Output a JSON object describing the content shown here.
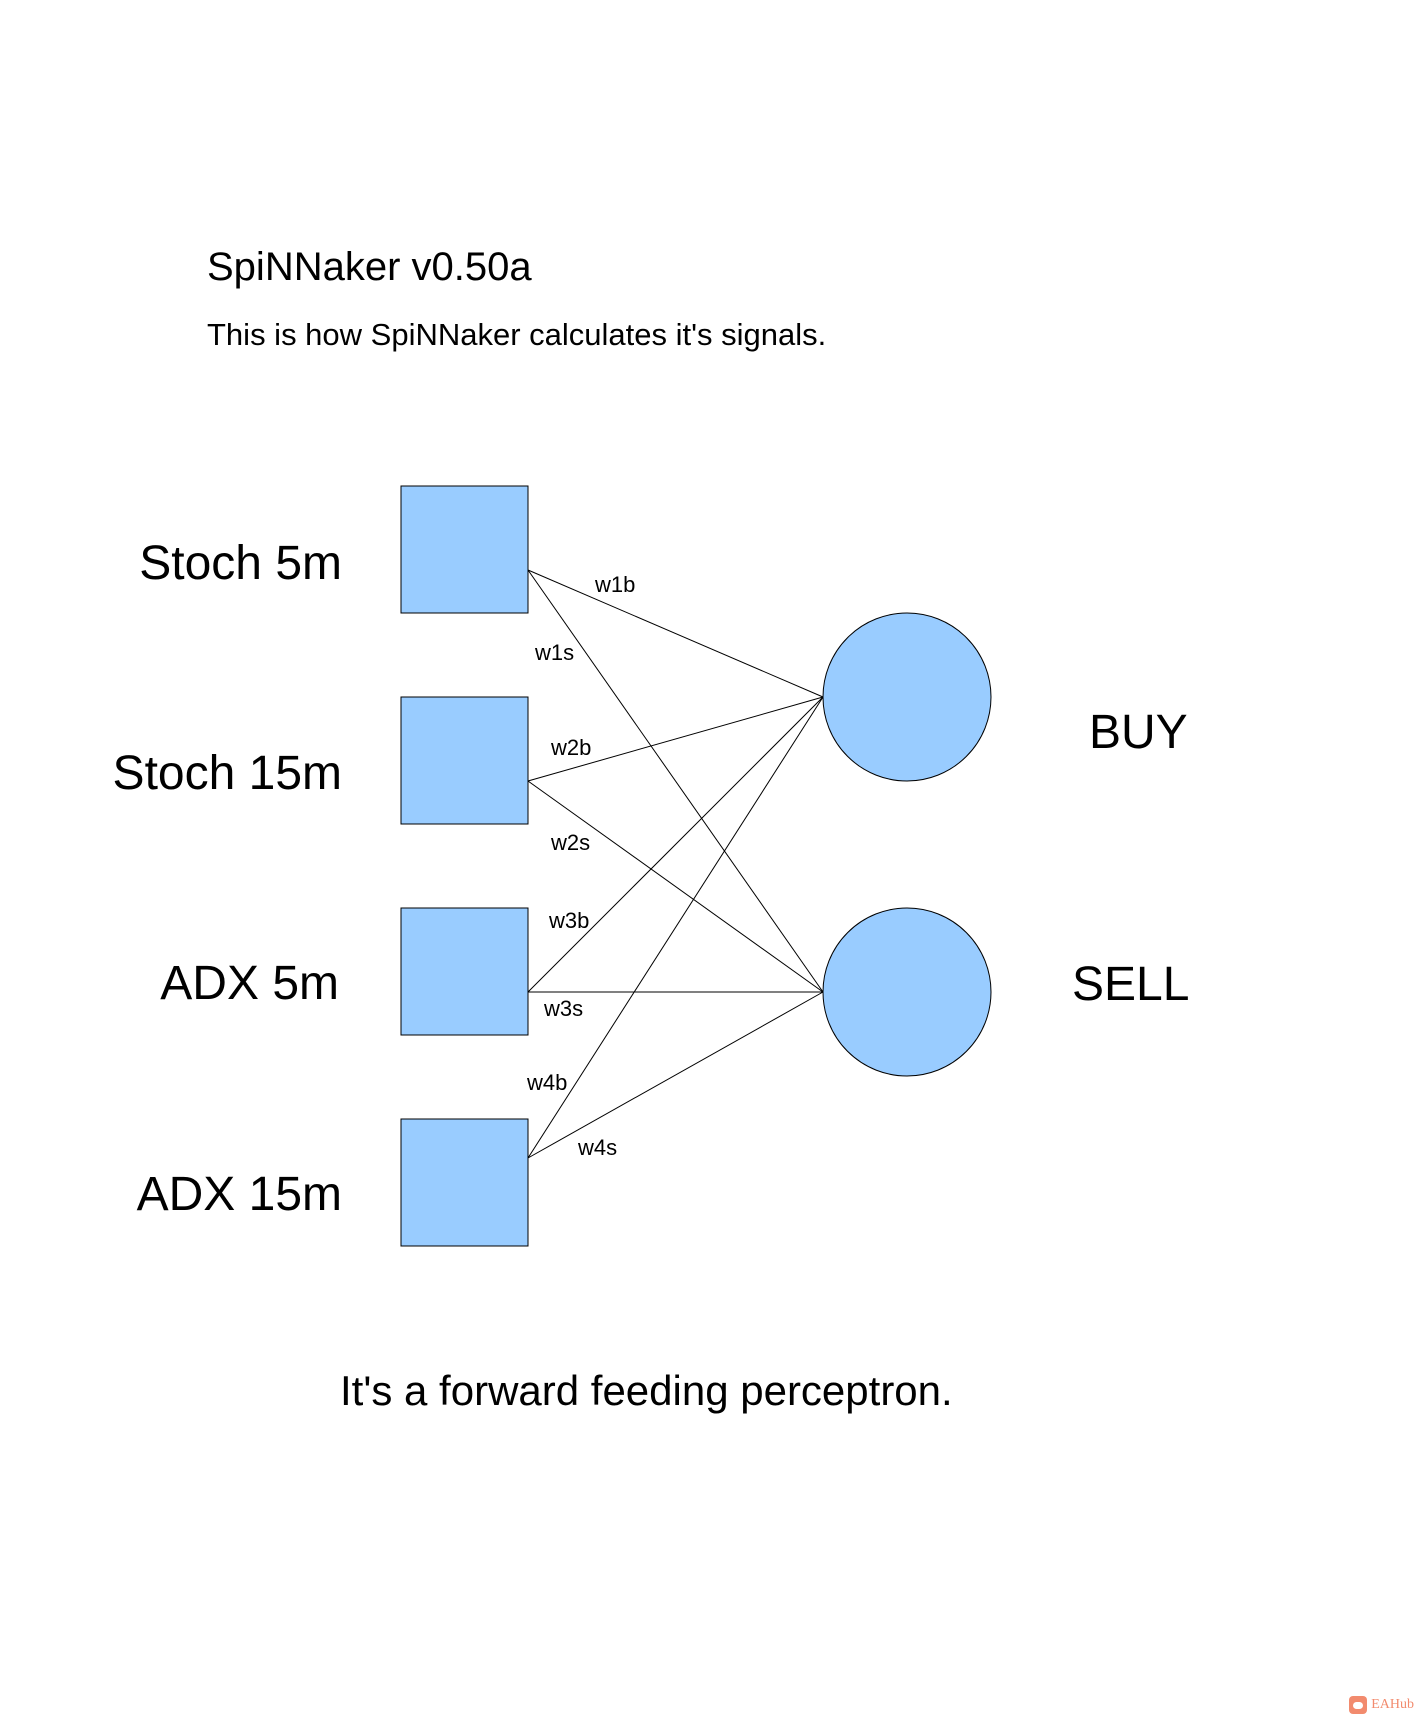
{
  "title": "SpiNNaker v0.50a",
  "subtitle": "This is how SpiNNaker calculates it's signals.",
  "inputs": [
    "Stoch 5m",
    "Stoch 15m",
    "ADX 5m",
    "ADX 15m"
  ],
  "outputs": [
    "BUY",
    "SELL"
  ],
  "weights": [
    "w1b",
    "w1s",
    "w2b",
    "w2s",
    "w3b",
    "w3s",
    "w4b",
    "w4s"
  ],
  "caption": "It's a forward feeding perceptron.",
  "watermark": "EAHub",
  "colors": {
    "node_fill": "#99ccff",
    "stroke": "#000000"
  }
}
